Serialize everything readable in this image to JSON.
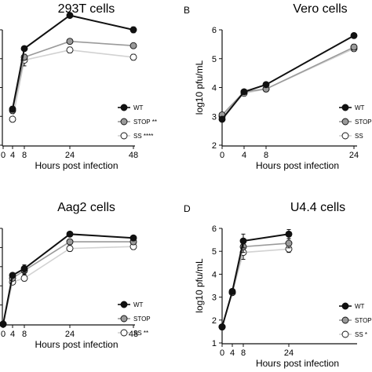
{
  "colors": {
    "wt": "#111111",
    "stop": "#9a9a9a",
    "ss": "#d2d2d2",
    "ss_marker_fill": "#ffffff"
  },
  "chart_data": [
    {
      "type": "line",
      "panel": "",
      "title": "293T cells",
      "xlabel": "Hours post infection",
      "ylabel": "",
      "x": [
        0,
        4,
        8,
        24,
        48
      ],
      "xticks": [
        0,
        4,
        8,
        24,
        48
      ],
      "ylim": [
        2,
        6
      ],
      "yticks": [],
      "legend": "bottom-right",
      "series": [
        {
          "key": "wt",
          "name": "WT",
          "values": [
            null,
            3.25,
            5.35,
            6.5,
            6.0
          ],
          "err": [
            0,
            0.1,
            0.08,
            0.05,
            0.1
          ]
        },
        {
          "key": "stop",
          "name": "STOP",
          "values": [
            null,
            3.2,
            5.05,
            5.6,
            5.45
          ],
          "err": [
            0,
            0.1,
            0.1,
            0.08,
            0.08
          ]
        },
        {
          "key": "ss",
          "name": "SS",
          "values": [
            null,
            2.9,
            4.95,
            5.3,
            5.05
          ],
          "err": [
            0,
            0.05,
            0.2,
            0.1,
            0.1
          ]
        }
      ],
      "legend_sig": [
        "",
        "**",
        "****"
      ]
    },
    {
      "type": "line",
      "panel": "B",
      "title": "Vero cells",
      "xlabel": "Hours post infection",
      "ylabel": "log10 pfu/mL",
      "x": [
        0,
        4,
        8,
        24
      ],
      "xticks": [
        0,
        4,
        8,
        24
      ],
      "ylim": [
        2,
        6
      ],
      "yticks": [
        2,
        3,
        4,
        5,
        6
      ],
      "legend": "bottom-right",
      "series": [
        {
          "key": "wt",
          "name": "WT",
          "values": [
            2.9,
            3.85,
            4.1,
            5.8
          ],
          "err": [
            0.05,
            0.05,
            0.05,
            0.05
          ]
        },
        {
          "key": "stop",
          "name": "STOP",
          "values": [
            3.05,
            3.85,
            3.95,
            5.4
          ],
          "err": [
            0.05,
            0.08,
            0.1,
            0.1
          ]
        },
        {
          "key": "ss",
          "name": "SS",
          "values": [
            3.0,
            3.8,
            3.95,
            5.35
          ],
          "err": [
            0.05,
            0.05,
            0.1,
            0.1
          ]
        }
      ],
      "legend_sig": [
        "",
        "",
        ""
      ]
    },
    {
      "type": "line",
      "panel": "",
      "title": "Aag2 cells",
      "xlabel": "Hours post infection",
      "ylabel": "",
      "x": [
        0,
        4,
        8,
        24,
        48
      ],
      "xticks": [
        0,
        4,
        8,
        24,
        48
      ],
      "ylim": [
        1,
        6
      ],
      "yticks": [],
      "legend": "bottom-right",
      "series": [
        {
          "key": "wt",
          "name": "WT",
          "values": [
            1.0,
            3.55,
            3.9,
            5.7,
            5.5
          ],
          "err": [
            0,
            0.05,
            0.2,
            0.05,
            0.05
          ]
        },
        {
          "key": "stop",
          "name": "STOP",
          "values": [
            1.0,
            3.4,
            3.8,
            5.3,
            5.3
          ],
          "err": [
            0,
            0.1,
            0.2,
            0.1,
            0.1
          ]
        },
        {
          "key": "ss",
          "name": "SS",
          "values": [
            1.0,
            3.2,
            3.4,
            4.95,
            5.05
          ],
          "err": [
            0,
            0.1,
            0.15,
            0.15,
            0.15
          ]
        }
      ],
      "legend_sig": [
        "",
        "",
        "**"
      ]
    },
    {
      "type": "line",
      "panel": "D",
      "title": "U4.4 cells",
      "xlabel": "Hours post infection",
      "ylabel": "log10 pfu/mL",
      "x": [
        0,
        4,
        8,
        24
      ],
      "xticks": [
        0,
        4,
        8,
        24
      ],
      "ylim": [
        1,
        6
      ],
      "yticks": [
        1,
        2,
        3,
        4,
        5,
        6
      ],
      "legend": "bottom-right",
      "series": [
        {
          "key": "wt",
          "name": "WT",
          "values": [
            1.7,
            3.25,
            5.45,
            5.75
          ],
          "err": [
            0,
            0.08,
            0.3,
            0.2
          ]
        },
        {
          "key": "stop",
          "name": "STOP",
          "values": [
            1.7,
            3.2,
            5.2,
            5.35
          ],
          "err": [
            0,
            0.08,
            0.25,
            0.2
          ]
        },
        {
          "key": "ss",
          "name": "SS",
          "values": [
            1.7,
            3.2,
            4.95,
            5.1
          ],
          "err": [
            0,
            0.05,
            0.3,
            0.15
          ]
        }
      ],
      "legend_sig": [
        "",
        "",
        "*"
      ]
    }
  ]
}
